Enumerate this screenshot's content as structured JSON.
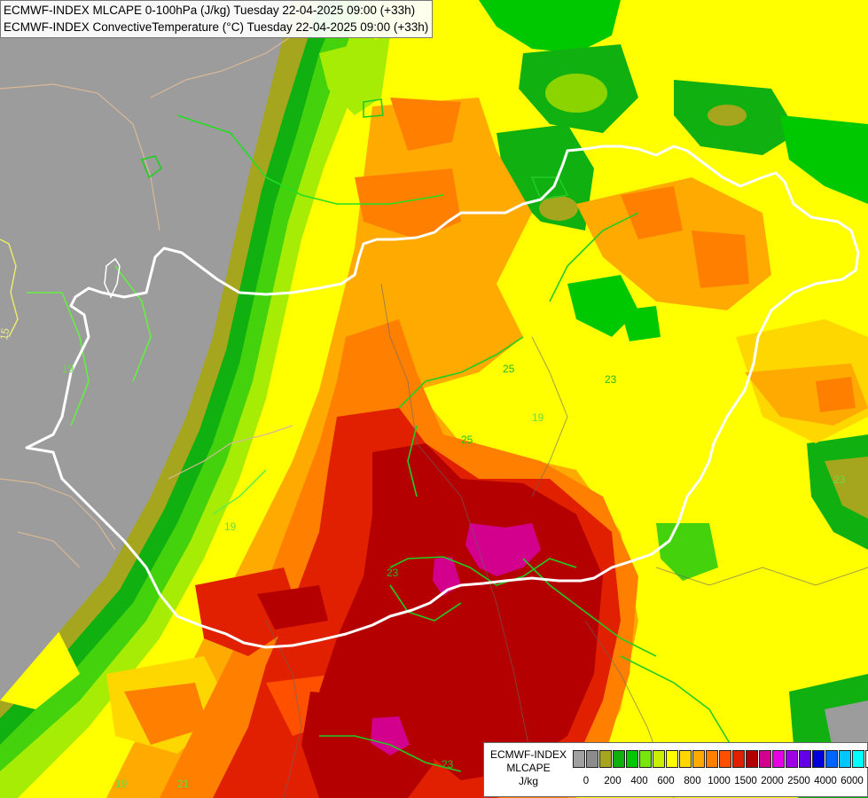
{
  "header": {
    "line1": "ECMWF-INDEX MLCAPE 0-100hPa (J/kg) Tuesday 22-04-2025 09:00 (+33h)",
    "line2": "ECMWF-INDEX ConvectiveTemperature (°C) Tuesday 22-04-2025 09:00 (+33h)"
  },
  "legend": {
    "line1": "ECMWF-INDEX",
    "line2": "MLCAPE",
    "line3": "J/kg",
    "colors": [
      "#a0a0a0",
      "#8c8c8c",
      "#a6a61e",
      "#10b010",
      "#00c800",
      "#78e60a",
      "#c8f000",
      "#ffff00",
      "#ffd700",
      "#ffaa00",
      "#ff8000",
      "#ff5000",
      "#e02000",
      "#b40000",
      "#d2008c",
      "#e600e6",
      "#a000e6",
      "#6400e6",
      "#0000dc",
      "#0064ff",
      "#00c8ff",
      "#00ffff",
      "#ffffff"
    ],
    "ticks": [
      "0",
      "200",
      "400",
      "600",
      "800",
      "1000",
      "1500",
      "2000",
      "2500",
      "4000",
      "6000"
    ]
  },
  "contour_labels": [
    "15",
    "25",
    "23",
    "23",
    "25",
    "23",
    "19",
    "19",
    "19",
    "21",
    "23",
    "19"
  ]
}
